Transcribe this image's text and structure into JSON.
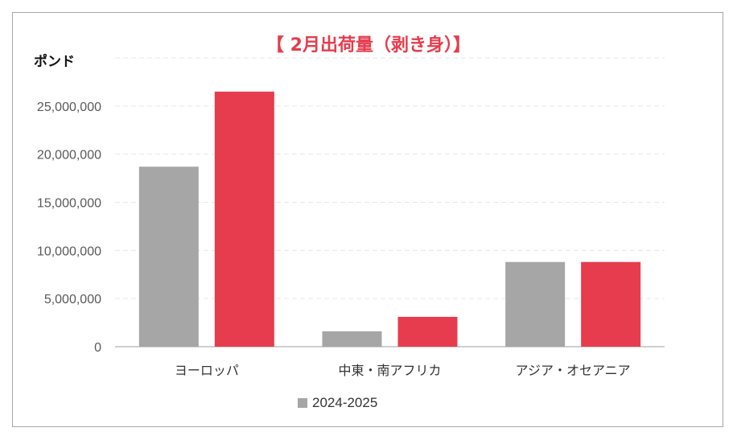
{
  "chart_data": {
    "type": "bar",
    "title": "【 2月出荷量（剥き身）】",
    "ylabel": "ポンド",
    "xlabel": "",
    "categories": [
      "ヨーロッパ",
      "中東・南アフリカ",
      "アジア・オセアニア"
    ],
    "yticks": [
      "0",
      "5,000,000",
      "10,000,000",
      "15,000,000",
      "20,000,000",
      "25,000,000"
    ],
    "ylim": [
      0,
      30000000
    ],
    "grid": true,
    "series": [
      {
        "name": "2024-2025",
        "color": "#a6a6a6",
        "values": [
          18700000,
          1600000,
          8800000
        ]
      },
      {
        "name": "",
        "color": "#e63c4d",
        "values": [
          26500000,
          3100000,
          8800000
        ]
      }
    ],
    "legend_position": "bottom"
  }
}
